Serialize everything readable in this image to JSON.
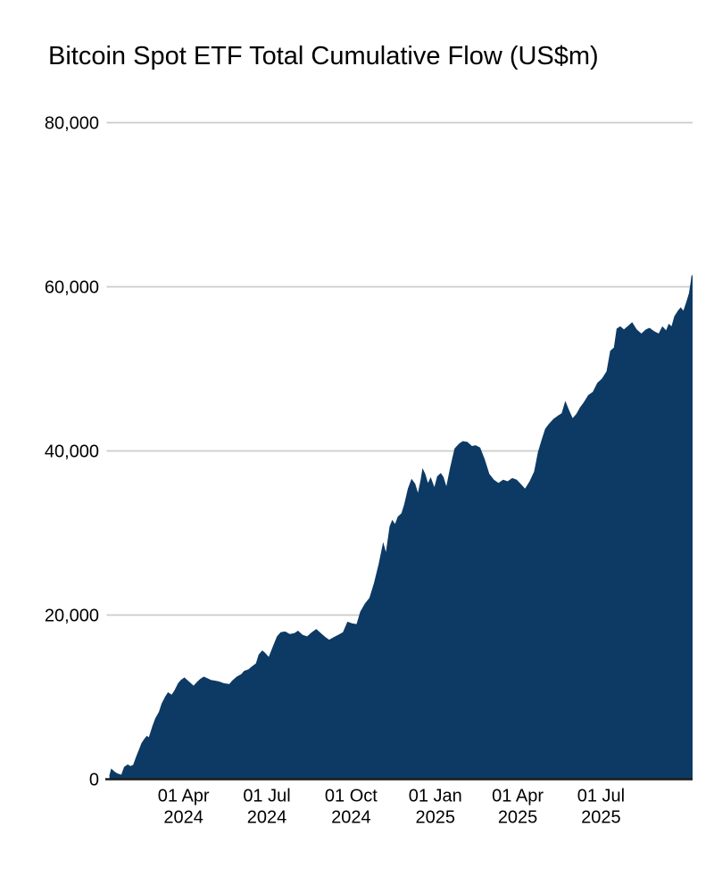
{
  "page": {
    "background": "#ffffff"
  },
  "chart_data": {
    "type": "area",
    "title": "Bitcoin Spot ETF Total Cumulative Flow (US$m)",
    "xlabel": "",
    "ylabel": "",
    "ylim": [
      0,
      80000
    ],
    "xlim": [
      "2024-01-08",
      "2025-10-09"
    ],
    "grid": true,
    "legend": false,
    "colors": {
      "area": "#0c3a64",
      "grid": "#cbcbcb",
      "axis": "#1c1c1c",
      "text": "#000000"
    },
    "yticks": [
      {
        "value": 0,
        "label": "0"
      },
      {
        "value": 20000,
        "label": "20,000"
      },
      {
        "value": 40000,
        "label": "40,000"
      },
      {
        "value": 60000,
        "label": "60,000"
      },
      {
        "value": 80000,
        "label": "80,000"
      }
    ],
    "xticks": [
      {
        "date": "2024-04-01",
        "label": [
          "01 Apr",
          "2024"
        ]
      },
      {
        "date": "2024-07-01",
        "label": [
          "01 Jul",
          "2024"
        ]
      },
      {
        "date": "2024-10-01",
        "label": [
          "01 Oct",
          "2024"
        ]
      },
      {
        "date": "2025-01-01",
        "label": [
          "01 Jan",
          "2025"
        ]
      },
      {
        "date": "2025-04-01",
        "label": [
          "01 Apr",
          "2025"
        ]
      },
      {
        "date": "2025-07-01",
        "label": [
          "01 Jul",
          "2025"
        ]
      }
    ],
    "series": [
      {
        "name": "Total cumulative flow (US$m)",
        "points": [
          [
            "2024-01-11",
            500
          ],
          [
            "2024-01-13",
            1300
          ],
          [
            "2024-01-17",
            900
          ],
          [
            "2024-01-20",
            700
          ],
          [
            "2024-01-24",
            550
          ],
          [
            "2024-01-27",
            1500
          ],
          [
            "2024-01-31",
            1800
          ],
          [
            "2024-02-03",
            1600
          ],
          [
            "2024-02-06",
            1750
          ],
          [
            "2024-02-09",
            2700
          ],
          [
            "2024-02-13",
            3800
          ],
          [
            "2024-02-15",
            4400
          ],
          [
            "2024-02-18",
            4900
          ],
          [
            "2024-02-21",
            5300
          ],
          [
            "2024-02-23",
            5100
          ],
          [
            "2024-02-27",
            6500
          ],
          [
            "2024-03-01",
            7400
          ],
          [
            "2024-03-05",
            8200
          ],
          [
            "2024-03-08",
            9200
          ],
          [
            "2024-03-12",
            10100
          ],
          [
            "2024-03-15",
            10600
          ],
          [
            "2024-03-19",
            10300
          ],
          [
            "2024-03-22",
            10800
          ],
          [
            "2024-03-26",
            11700
          ],
          [
            "2024-03-29",
            12100
          ],
          [
            "2024-04-02",
            12400
          ],
          [
            "2024-04-05",
            12100
          ],
          [
            "2024-04-09",
            11700
          ],
          [
            "2024-04-12",
            11400
          ],
          [
            "2024-04-16",
            11900
          ],
          [
            "2024-04-19",
            12200
          ],
          [
            "2024-04-23",
            12500
          ],
          [
            "2024-04-27",
            12300
          ],
          [
            "2024-05-01",
            12100
          ],
          [
            "2024-05-06",
            12000
          ],
          [
            "2024-05-10",
            11900
          ],
          [
            "2024-05-15",
            11700
          ],
          [
            "2024-05-21",
            11600
          ],
          [
            "2024-05-24",
            12000
          ],
          [
            "2024-05-29",
            12500
          ],
          [
            "2024-06-03",
            12800
          ],
          [
            "2024-06-06",
            13200
          ],
          [
            "2024-06-11",
            13400
          ],
          [
            "2024-06-14",
            13700
          ],
          [
            "2024-06-19",
            14100
          ],
          [
            "2024-06-22",
            15200
          ],
          [
            "2024-06-26",
            15700
          ],
          [
            "2024-06-29",
            15400
          ],
          [
            "2024-07-03",
            14900
          ],
          [
            "2024-07-08",
            16300
          ],
          [
            "2024-07-12",
            17400
          ],
          [
            "2024-07-16",
            17900
          ],
          [
            "2024-07-21",
            18000
          ],
          [
            "2024-07-26",
            17700
          ],
          [
            "2024-07-31",
            17800
          ],
          [
            "2024-08-04",
            18100
          ],
          [
            "2024-08-09",
            17600
          ],
          [
            "2024-08-14",
            17400
          ],
          [
            "2024-08-19",
            17900
          ],
          [
            "2024-08-24",
            18300
          ],
          [
            "2024-08-29",
            17800
          ],
          [
            "2024-09-03",
            17300
          ],
          [
            "2024-09-07",
            17000
          ],
          [
            "2024-09-12",
            17300
          ],
          [
            "2024-09-17",
            17600
          ],
          [
            "2024-09-22",
            17900
          ],
          [
            "2024-09-27",
            19200
          ],
          [
            "2024-10-02",
            19000
          ],
          [
            "2024-10-07",
            18900
          ],
          [
            "2024-10-11",
            20400
          ],
          [
            "2024-10-16",
            21400
          ],
          [
            "2024-10-21",
            22100
          ],
          [
            "2024-10-26",
            23900
          ],
          [
            "2024-10-31",
            26200
          ],
          [
            "2024-11-05",
            28900
          ],
          [
            "2024-11-08",
            27700
          ],
          [
            "2024-11-12",
            30800
          ],
          [
            "2024-11-15",
            31600
          ],
          [
            "2024-11-18",
            31100
          ],
          [
            "2024-11-21",
            32000
          ],
          [
            "2024-11-25",
            32400
          ],
          [
            "2024-11-28",
            33500
          ],
          [
            "2024-12-02",
            35400
          ],
          [
            "2024-12-06",
            36600
          ],
          [
            "2024-12-10",
            36000
          ],
          [
            "2024-12-13",
            34900
          ],
          [
            "2024-12-16",
            36500
          ],
          [
            "2024-12-18",
            37900
          ],
          [
            "2024-12-21",
            37200
          ],
          [
            "2024-12-24",
            36100
          ],
          [
            "2024-12-27",
            36800
          ],
          [
            "2024-12-31",
            35600
          ],
          [
            "2025-01-03",
            36900
          ],
          [
            "2025-01-07",
            37300
          ],
          [
            "2025-01-10",
            36800
          ],
          [
            "2025-01-13",
            35700
          ],
          [
            "2025-01-17",
            37900
          ],
          [
            "2025-01-22",
            40300
          ],
          [
            "2025-01-27",
            40900
          ],
          [
            "2025-01-31",
            41200
          ],
          [
            "2025-02-05",
            41100
          ],
          [
            "2025-02-10",
            40600
          ],
          [
            "2025-02-14",
            40700
          ],
          [
            "2025-02-19",
            40400
          ],
          [
            "2025-02-24",
            39000
          ],
          [
            "2025-03-01",
            37200
          ],
          [
            "2025-03-06",
            36500
          ],
          [
            "2025-03-11",
            36100
          ],
          [
            "2025-03-16",
            36500
          ],
          [
            "2025-03-21",
            36300
          ],
          [
            "2025-03-26",
            36700
          ],
          [
            "2025-03-31",
            36500
          ],
          [
            "2025-04-05",
            35900
          ],
          [
            "2025-04-09",
            35400
          ],
          [
            "2025-04-14",
            36300
          ],
          [
            "2025-04-19",
            37500
          ],
          [
            "2025-04-23",
            39800
          ],
          [
            "2025-04-27",
            41300
          ],
          [
            "2025-05-01",
            42700
          ],
          [
            "2025-05-05",
            43300
          ],
          [
            "2025-05-10",
            43900
          ],
          [
            "2025-05-15",
            44300
          ],
          [
            "2025-05-19",
            44600
          ],
          [
            "2025-05-23",
            46100
          ],
          [
            "2025-05-27",
            45000
          ],
          [
            "2025-05-31",
            44000
          ],
          [
            "2025-06-04",
            44500
          ],
          [
            "2025-06-08",
            45300
          ],
          [
            "2025-06-12",
            45900
          ],
          [
            "2025-06-17",
            46800
          ],
          [
            "2025-06-22",
            47200
          ],
          [
            "2025-06-27",
            48300
          ],
          [
            "2025-07-02",
            48800
          ],
          [
            "2025-07-07",
            49700
          ],
          [
            "2025-07-11",
            52200
          ],
          [
            "2025-07-15",
            52600
          ],
          [
            "2025-07-18",
            54900
          ],
          [
            "2025-07-22",
            55200
          ],
          [
            "2025-07-26",
            54800
          ],
          [
            "2025-07-30",
            55200
          ],
          [
            "2025-08-04",
            55700
          ],
          [
            "2025-08-09",
            54800
          ],
          [
            "2025-08-14",
            54300
          ],
          [
            "2025-08-19",
            54800
          ],
          [
            "2025-08-23",
            55000
          ],
          [
            "2025-08-28",
            54600
          ],
          [
            "2025-09-02",
            54300
          ],
          [
            "2025-09-06",
            55200
          ],
          [
            "2025-09-10",
            54700
          ],
          [
            "2025-09-13",
            55500
          ],
          [
            "2025-09-16",
            55200
          ],
          [
            "2025-09-19",
            56400
          ],
          [
            "2025-09-23",
            57100
          ],
          [
            "2025-09-26",
            57500
          ],
          [
            "2025-09-29",
            57100
          ],
          [
            "2025-10-02",
            58100
          ],
          [
            "2025-10-05",
            59200
          ],
          [
            "2025-10-07",
            60600
          ],
          [
            "2025-10-08",
            61500
          ],
          [
            "2025-10-09",
            61300
          ]
        ]
      }
    ]
  }
}
